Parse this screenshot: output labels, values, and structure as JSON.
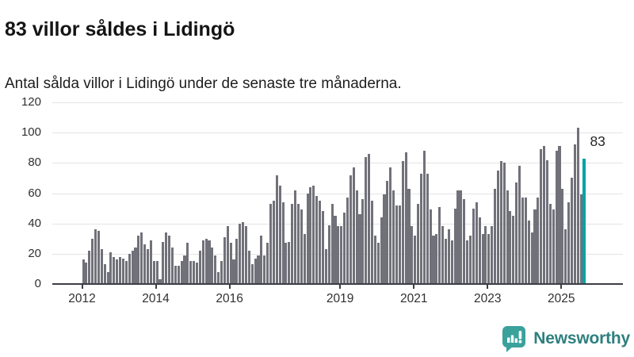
{
  "header": {
    "title": "83 villor såldes i Lidingö",
    "subtitle": "Antal sålda villor i Lidingö under de senaste tre månaderna."
  },
  "annotation": {
    "latest_value_label": "83"
  },
  "footer": {
    "brand": "Newsworthy",
    "logo_icon": "speech-bubble-bar-chart-icon"
  },
  "colors": {
    "bar": "#71717a",
    "highlight": "#00a2a4",
    "grid": "#e4e4e4",
    "axis": "#3d3d46",
    "brand_teal": "#3aa19b"
  },
  "chart_data": {
    "type": "bar",
    "title": "83 villor såldes i Lidingö",
    "subtitle": "Antal sålda villor i Lidingö under de senaste tre månaderna.",
    "xlabel": "",
    "ylabel": "",
    "ylim": [
      0,
      120
    ],
    "yticks": [
      0,
      20,
      40,
      60,
      80,
      100,
      120
    ],
    "xticks_years": [
      2012,
      2014,
      2016,
      2019,
      2021,
      2023,
      2025
    ],
    "grid": true,
    "x_start_month": "2012-01",
    "x_end_month": "2025-08",
    "highlight_last_bar": true,
    "highlight_value": 83,
    "monthly_values_by_year": [
      {
        "year": 2012,
        "values": [
          16,
          14,
          22,
          30,
          36,
          35,
          23,
          13,
          8,
          21,
          18,
          16
        ]
      },
      {
        "year": 2013,
        "values": [
          18,
          17,
          15,
          20,
          22,
          24,
          32,
          34,
          26,
          23,
          29,
          15
        ]
      },
      {
        "year": 2014,
        "values": [
          15,
          3,
          28,
          34,
          32,
          24,
          12,
          12,
          15,
          19,
          27,
          15
        ]
      },
      {
        "year": 2015,
        "values": [
          15,
          14,
          22,
          29,
          30,
          29,
          24,
          19,
          8,
          15,
          31,
          38
        ]
      },
      {
        "year": 2016,
        "values": [
          27,
          16,
          30,
          40,
          41,
          38,
          22,
          13,
          17,
          19,
          32,
          19
        ]
      },
      {
        "year": 2017,
        "values": [
          27,
          53,
          55,
          72,
          65,
          54,
          27,
          28,
          53,
          62,
          53,
          49
        ]
      },
      {
        "year": 2018,
        "values": [
          33,
          60,
          64,
          65,
          58,
          55,
          48,
          23,
          39,
          53,
          45,
          38
        ]
      },
      {
        "year": 2019,
        "values": [
          38,
          47,
          57,
          72,
          77,
          62,
          46,
          56,
          84,
          86,
          55,
          32
        ]
      },
      {
        "year": 2020,
        "values": [
          27,
          44,
          59,
          68,
          77,
          62,
          52,
          52,
          81,
          87,
          63,
          38
        ]
      },
      {
        "year": 2021,
        "values": [
          32,
          53,
          73,
          88,
          73,
          49,
          32,
          33,
          51,
          38,
          30,
          36
        ]
      },
      {
        "year": 2022,
        "values": [
          29,
          50,
          62,
          62,
          56,
          29,
          32,
          50,
          54,
          44,
          33,
          38
        ]
      },
      {
        "year": 2023,
        "values": [
          33,
          38,
          63,
          75,
          81,
          80,
          62,
          48,
          45,
          67,
          78,
          57
        ]
      },
      {
        "year": 2024,
        "values": [
          57,
          42,
          34,
          49,
          57,
          89,
          91,
          82,
          53,
          49,
          88,
          91
        ]
      },
      {
        "year": 2025,
        "values": [
          63,
          36,
          54,
          70,
          92,
          103,
          59,
          83
        ]
      }
    ]
  }
}
